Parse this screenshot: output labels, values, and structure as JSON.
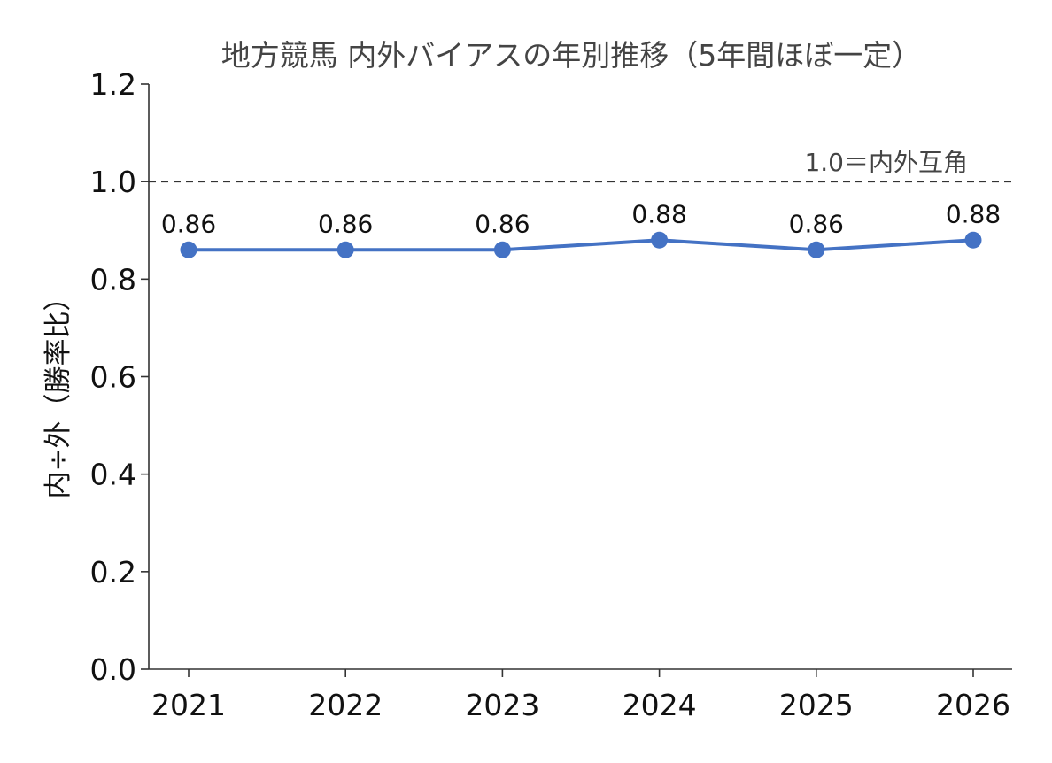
{
  "chart_data": {
    "type": "line",
    "title": "地方競馬 内外バイアスの年別推移（5年間ほぼ一定）",
    "xlabel": "",
    "ylabel": "内÷外（勝率比）",
    "categories": [
      "2021",
      "2022",
      "2023",
      "2024",
      "2025",
      "2026"
    ],
    "series": [
      {
        "values": [
          0.86,
          0.86,
          0.86,
          0.88,
          0.86,
          0.88
        ],
        "labels": [
          "0.86",
          "0.86",
          "0.86",
          "0.88",
          "0.86",
          "0.88"
        ]
      }
    ],
    "ylim": [
      0,
      1.2
    ],
    "yticks": [
      0.0,
      0.2,
      0.4,
      0.6,
      0.8,
      1.0,
      1.2
    ],
    "ytick_labels": [
      "0.0",
      "0.2",
      "0.4",
      "0.6",
      "0.8",
      "1.0",
      "1.2"
    ],
    "reference_line": {
      "value": 1.0,
      "label": "1.0＝内外互角",
      "style": "dashed"
    },
    "grid": false,
    "colors": {
      "line": "#4472c4",
      "axis": "#333333",
      "reference": "#333333"
    }
  }
}
